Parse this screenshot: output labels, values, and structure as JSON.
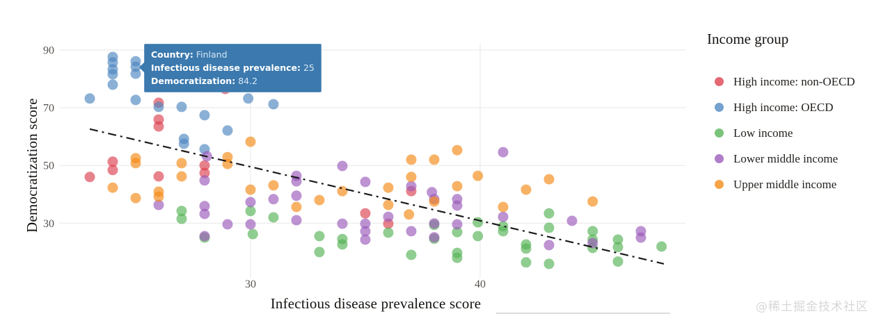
{
  "tooltip": {
    "rows": [
      {
        "label": "Country:",
        "value": "Finland"
      },
      {
        "label": "Infectious disease prevalence:",
        "value": "25"
      },
      {
        "label": "Democratization:",
        "value": "84.2"
      }
    ],
    "background_color": "#3b79ae"
  },
  "legend": {
    "title": "Income group",
    "items": [
      {
        "label": "High income: non-OECD",
        "color": "#dc3f4e"
      },
      {
        "label": "High income: OECD",
        "color": "#4d86c0"
      },
      {
        "label": "Low income",
        "color": "#55b255"
      },
      {
        "label": "Lower middle income",
        "color": "#9a59ba"
      },
      {
        "label": "Upper middle income",
        "color": "#f58914"
      }
    ]
  },
  "watermark": "@稀土掘金技术社区",
  "chart_data": {
    "type": "scatter",
    "title": "",
    "xlabel": "Infectious disease prevalence score",
    "ylabel": "Democratization score",
    "xlim": [
      21.7,
      49
    ],
    "ylim": [
      8.5,
      92
    ],
    "x_ticks": [
      30,
      40
    ],
    "y_ticks": [
      90,
      70,
      50,
      30
    ],
    "grid": true,
    "legend_position": "right",
    "point_opacity": 0.65,
    "highlighted_point": {
      "series": "High income: OECD",
      "country": "Finland",
      "x": 25,
      "y": 84.2
    },
    "trend_line": {
      "style": "dash-dot",
      "color": "#1a1a1a",
      "x1": 23.0,
      "y1": 62.6,
      "x2": 48.0,
      "y2": 15.9
    },
    "series": [
      {
        "name": "High income: non-OECD",
        "color": "#dc3f4e",
        "points": [
          [
            28.9,
            76.5
          ],
          [
            26.0,
            71.7
          ],
          [
            26.0,
            65.9
          ],
          [
            26.0,
            63.5
          ],
          [
            23.0,
            46.0
          ],
          [
            24.0,
            51.3
          ],
          [
            24.0,
            48.4
          ],
          [
            26.0,
            46.2
          ],
          [
            28.0,
            50.0
          ],
          [
            28.0,
            47.4
          ],
          [
            35.0,
            33.4
          ],
          [
            36.0,
            29.8
          ],
          [
            37.0,
            41.1
          ]
        ]
      },
      {
        "name": "High income: OECD",
        "color": "#4d86c0",
        "points": [
          [
            24.0,
            87.6
          ],
          [
            24.0,
            85.7
          ],
          [
            24.0,
            83.3
          ],
          [
            24.0,
            81.6
          ],
          [
            24.0,
            78.0
          ],
          [
            25.0,
            86.1
          ],
          [
            25.0,
            84.2
          ],
          [
            25.0,
            81.8
          ],
          [
            25.0,
            72.7
          ],
          [
            23.0,
            73.2
          ],
          [
            26.0,
            70.3
          ],
          [
            27.0,
            70.3
          ],
          [
            28.0,
            67.4
          ],
          [
            29.0,
            62.1
          ],
          [
            27.1,
            59.2
          ],
          [
            27.1,
            57.5
          ],
          [
            28.0,
            55.6
          ],
          [
            29.9,
            73.2
          ],
          [
            31.0,
            71.2
          ],
          [
            32.0,
            77.2
          ]
        ]
      },
      {
        "name": "Low income",
        "color": "#55b255",
        "points": [
          [
            27.0,
            34.2
          ],
          [
            27.0,
            31.5
          ],
          [
            30.0,
            34.2
          ],
          [
            30.1,
            26.2
          ],
          [
            31.0,
            32.0
          ],
          [
            33.0,
            25.5
          ],
          [
            33.0,
            20.0
          ],
          [
            34.0,
            24.5
          ],
          [
            34.0,
            22.6
          ],
          [
            36.0,
            26.7
          ],
          [
            37.0,
            19.0
          ],
          [
            38.0,
            29.4
          ],
          [
            38.0,
            24.6
          ],
          [
            28.0,
            25.0
          ],
          [
            39.0,
            26.9
          ],
          [
            39.0,
            19.7
          ],
          [
            39.0,
            18.0
          ],
          [
            39.9,
            30.3
          ],
          [
            39.9,
            25.5
          ],
          [
            41.0,
            28.9
          ],
          [
            41.0,
            27.2
          ],
          [
            42.0,
            22.6
          ],
          [
            42.0,
            21.2
          ],
          [
            42.0,
            16.4
          ],
          [
            43.0,
            33.4
          ],
          [
            43.0,
            28.4
          ],
          [
            43.0,
            15.9
          ],
          [
            44.9,
            27.2
          ],
          [
            44.9,
            24.3
          ],
          [
            44.9,
            21.4
          ],
          [
            46.0,
            24.3
          ],
          [
            46.0,
            21.7
          ],
          [
            46.0,
            16.7
          ],
          [
            47.9,
            21.9
          ]
        ]
      },
      {
        "name": "Lower middle income",
        "color": "#9a59ba",
        "points": [
          [
            28.1,
            53.2
          ],
          [
            34.0,
            49.8
          ],
          [
            41.0,
            54.6
          ],
          [
            26.0,
            36.3
          ],
          [
            28.0,
            44.8
          ],
          [
            28.0,
            35.9
          ],
          [
            28.0,
            33.2
          ],
          [
            29.0,
            29.6
          ],
          [
            30.0,
            37.3
          ],
          [
            30.0,
            29.6
          ],
          [
            31.0,
            38.3
          ],
          [
            32.0,
            46.4
          ],
          [
            32.0,
            44.5
          ],
          [
            32.0,
            39.5
          ],
          [
            32.0,
            31.0
          ],
          [
            34.0,
            29.8
          ],
          [
            35.0,
            44.3
          ],
          [
            35.0,
            29.8
          ],
          [
            35.0,
            27.2
          ],
          [
            35.0,
            24.3
          ],
          [
            36.0,
            32.2
          ],
          [
            37.0,
            42.8
          ],
          [
            37.0,
            27.2
          ],
          [
            37.9,
            40.7
          ],
          [
            38.0,
            38.3
          ],
          [
            39.0,
            38.3
          ],
          [
            39.0,
            36.1
          ],
          [
            39.0,
            29.6
          ],
          [
            41.0,
            32.2
          ],
          [
            43.0,
            22.4
          ],
          [
            44.0,
            30.8
          ],
          [
            44.9,
            23.1
          ],
          [
            47.0,
            27.2
          ],
          [
            47.0,
            25.0
          ],
          [
            28.0,
            25.5
          ],
          [
            38.0,
            29.9
          ],
          [
            38.0,
            25.1
          ]
        ]
      },
      {
        "name": "Upper middle income",
        "color": "#f58914",
        "points": [
          [
            25.0,
            52.5
          ],
          [
            25.0,
            50.8
          ],
          [
            24.0,
            42.3
          ],
          [
            25.0,
            38.7
          ],
          [
            26.0,
            40.9
          ],
          [
            26.0,
            39.2
          ],
          [
            27.0,
            50.8
          ],
          [
            27.0,
            46.2
          ],
          [
            29.0,
            52.9
          ],
          [
            29.0,
            50.5
          ],
          [
            30.0,
            58.2
          ],
          [
            30.0,
            41.6
          ],
          [
            31.0,
            43.1
          ],
          [
            32.0,
            35.6
          ],
          [
            33.0,
            38.0
          ],
          [
            34.0,
            41.1
          ],
          [
            36.0,
            42.3
          ],
          [
            36.0,
            36.3
          ],
          [
            36.9,
            33.0
          ],
          [
            37.0,
            52.0
          ],
          [
            37.0,
            46.0
          ],
          [
            38.0,
            52.0
          ],
          [
            38.0,
            37.5
          ],
          [
            39.0,
            55.3
          ],
          [
            39.0,
            42.8
          ],
          [
            39.9,
            46.4
          ],
          [
            42.0,
            41.6
          ],
          [
            43.0,
            45.2
          ],
          [
            41.0,
            35.6
          ],
          [
            44.9,
            37.5
          ]
        ]
      }
    ]
  }
}
